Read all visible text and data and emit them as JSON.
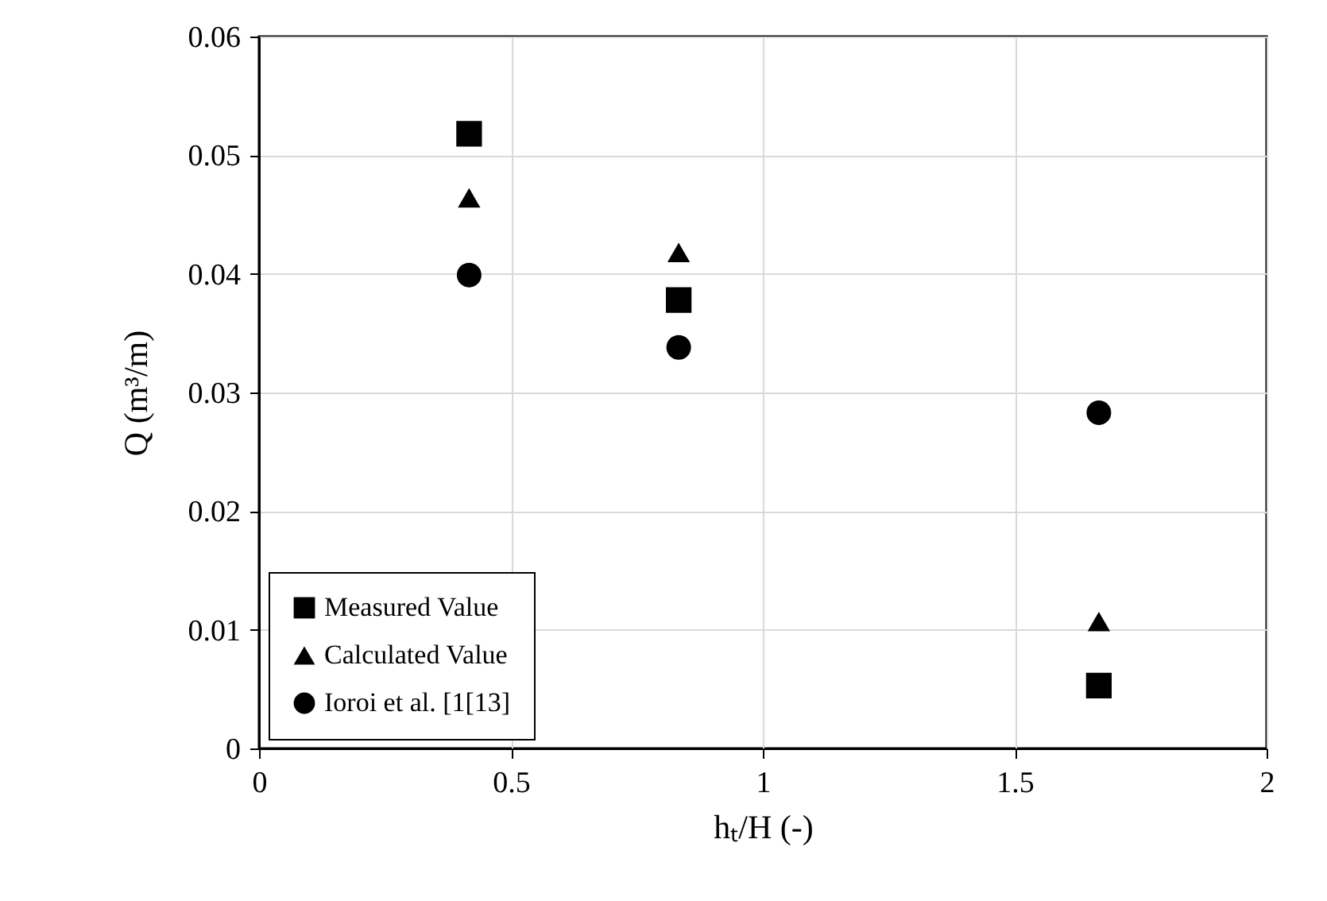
{
  "chart_data": {
    "type": "scatter",
    "xlabel": "hₜ/H (-)",
    "ylabel": "Q (m³/m)",
    "x": [
      0.417,
      0.833,
      1.667
    ],
    "series": [
      {
        "name": "Measured Value",
        "color": "#000000",
        "marker": "square",
        "values": [
          0.0518,
          0.0378,
          0.0053
        ]
      },
      {
        "name": "Calculated Value",
        "color": "#000000",
        "marker": "triangle",
        "values": [
          0.0464,
          0.0418,
          0.0107
        ]
      },
      {
        "name": "Ioroi et al. [1[13]",
        "color": "#000000",
        "marker": "circle",
        "values": [
          0.0399,
          0.0338,
          0.0283
        ]
      }
    ],
    "xlim": [
      0,
      2
    ],
    "xticks": [
      0,
      0.5,
      1,
      1.5,
      2
    ],
    "ylim": [
      0,
      0.06
    ],
    "yticks": [
      0,
      0.01,
      0.02,
      0.03,
      0.04,
      0.05,
      0.06
    ],
    "grid": true,
    "legend": "bottom left"
  }
}
